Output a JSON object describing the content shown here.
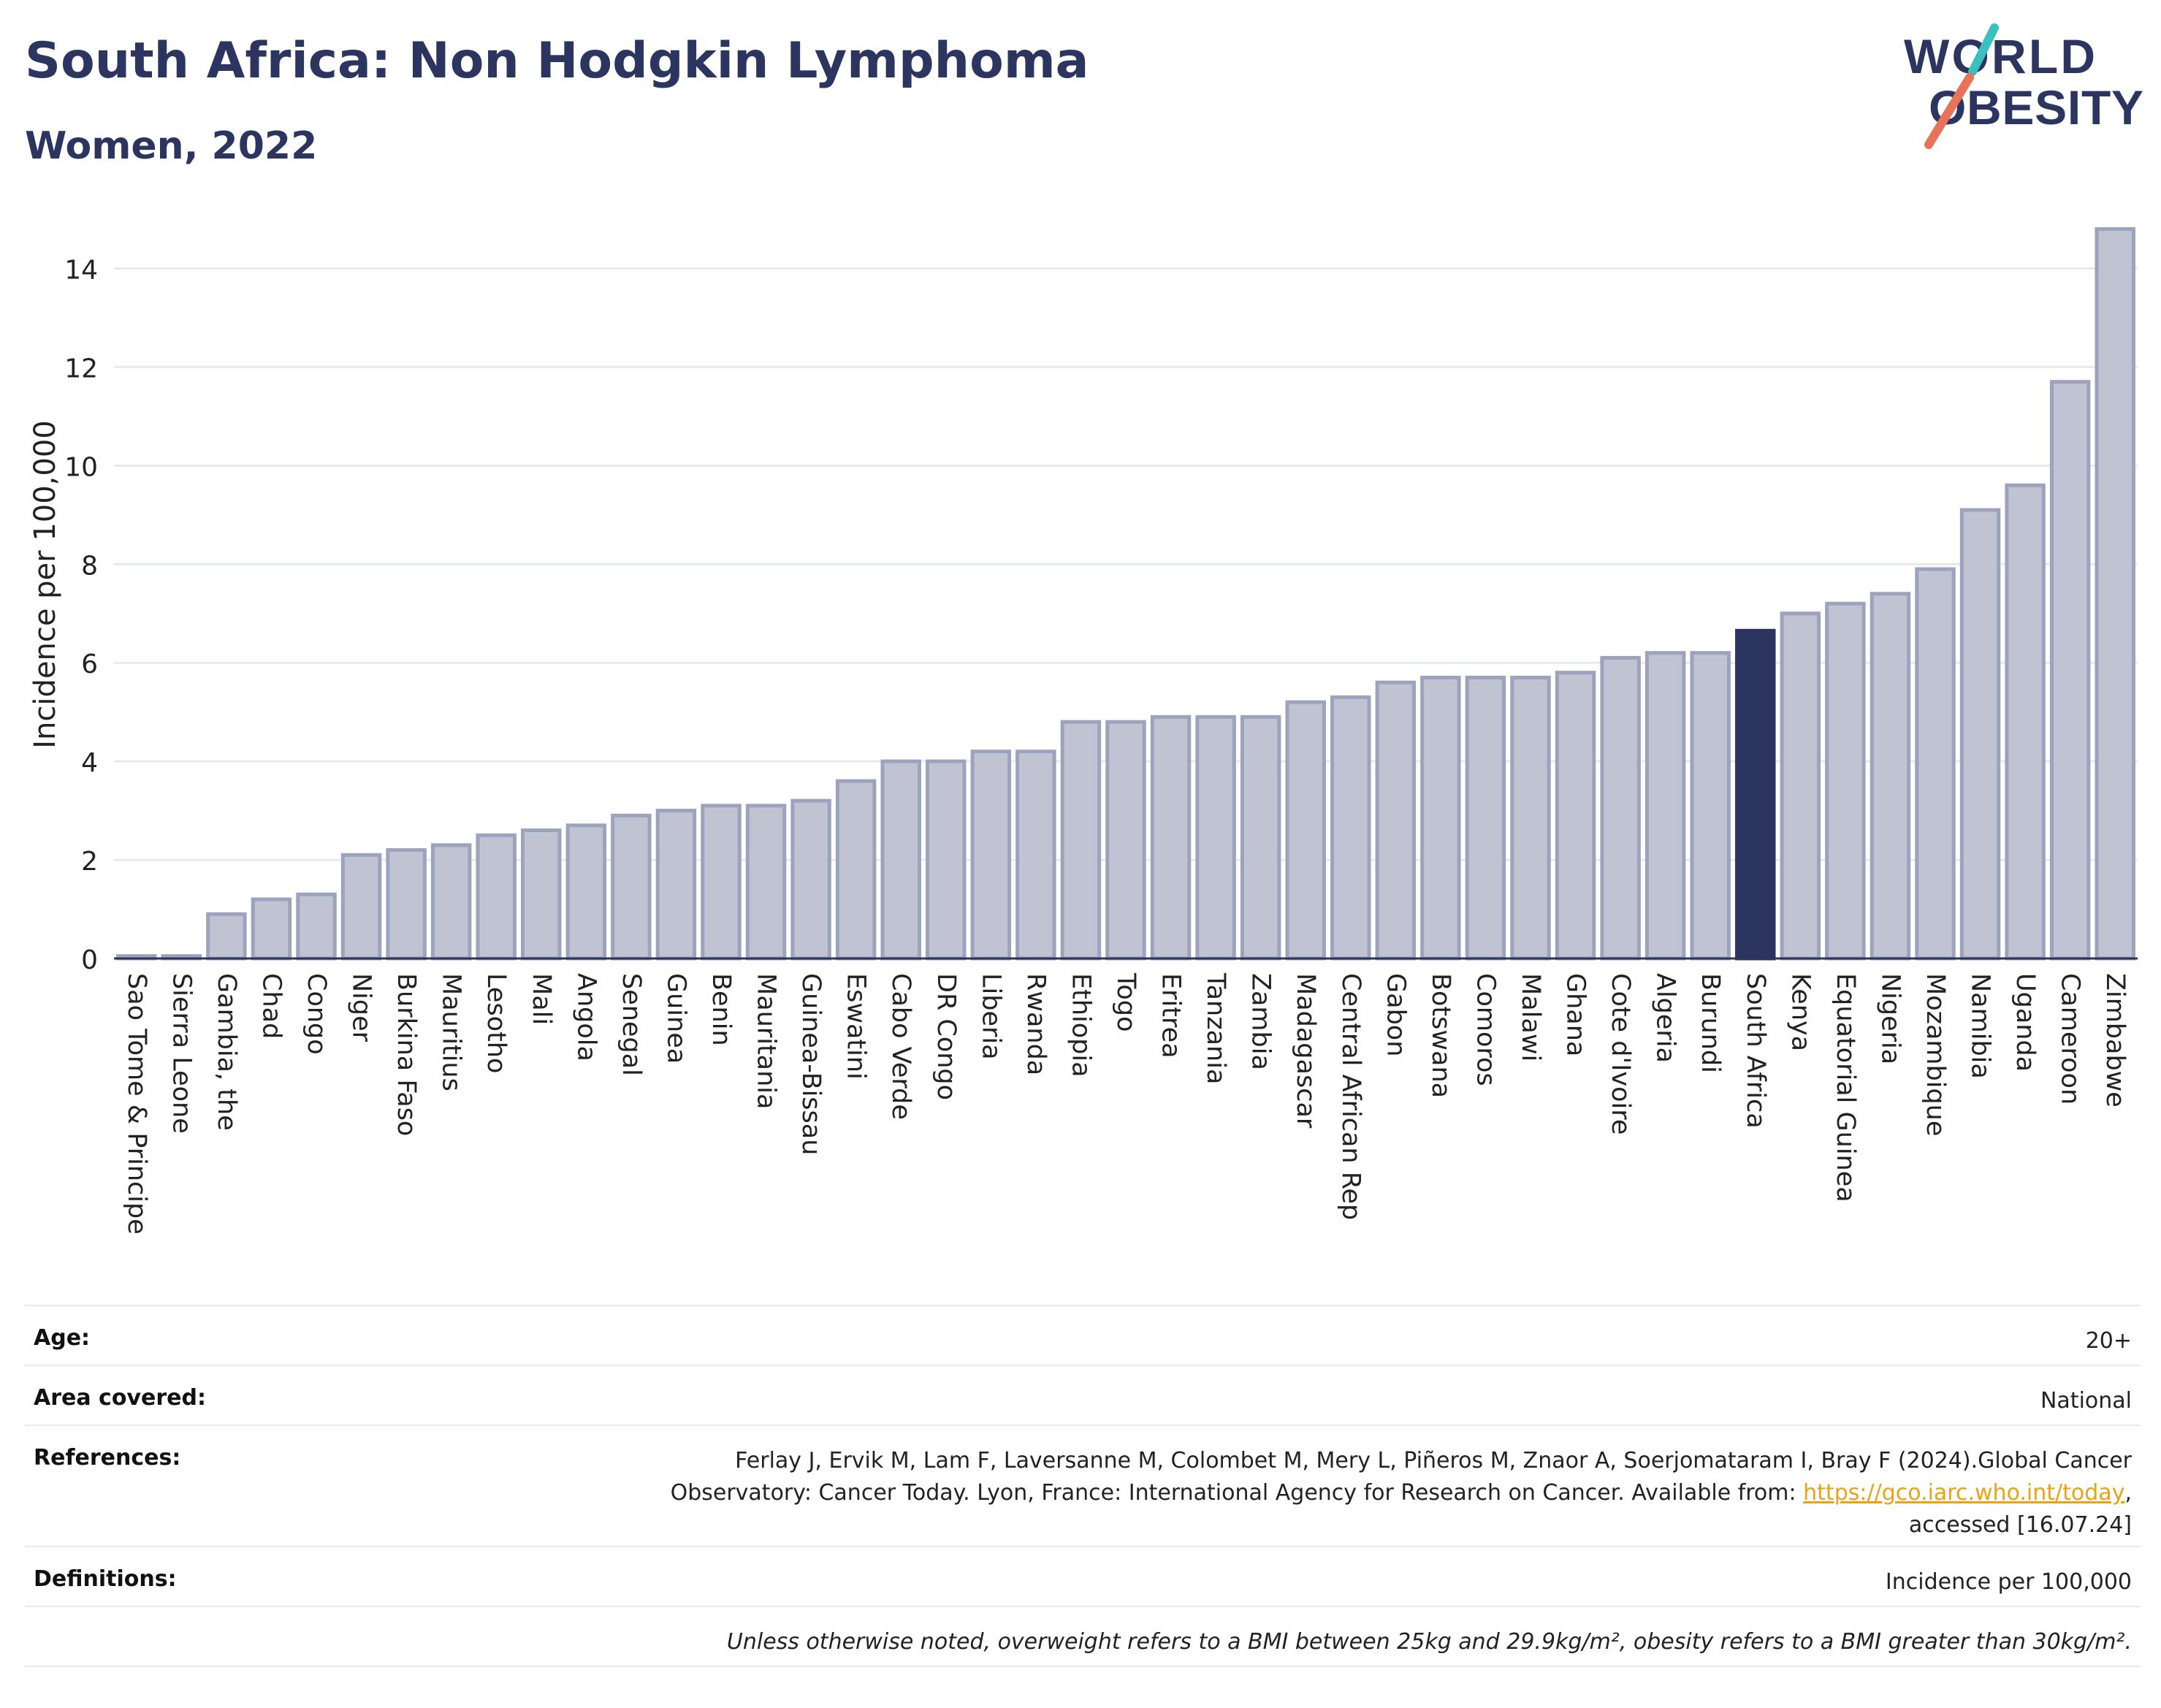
{
  "header": {
    "title": "South Africa: Non Hodgkin Lymphoma",
    "subtitle": "Women, 2022",
    "logo_line1": "WORLD",
    "logo_line2": "OBESITY"
  },
  "colors": {
    "bar": "#bfc3d2",
    "bar_border": "#9da3bd",
    "highlight": "#2b3560",
    "title": "#2b3560",
    "logo_teal": "#3bbfbf",
    "logo_coral": "#e8735a"
  },
  "chart_data": {
    "type": "bar",
    "title": "South Africa: Non Hodgkin Lymphoma",
    "subtitle": "Women, 2022",
    "xlabel": "",
    "ylabel": "Incidence per 100,000",
    "ylim": [
      0,
      15
    ],
    "yticks": [
      0,
      2,
      4,
      6,
      8,
      10,
      12,
      14
    ],
    "grid": true,
    "highlight": "South Africa",
    "categories": [
      "Sao Tome & Principe",
      "Sierra Leone",
      "Gambia, the",
      "Chad",
      "Congo",
      "Niger",
      "Burkina Faso",
      "Mauritius",
      "Lesotho",
      "Mali",
      "Angola",
      "Senegal",
      "Guinea",
      "Benin",
      "Mauritania",
      "Guinea-Bissau",
      "Eswatini",
      "Cabo Verde",
      "DR Congo",
      "Liberia",
      "Rwanda",
      "Ethiopia",
      "Togo",
      "Eritrea",
      "Tanzania",
      "Zambia",
      "Madagascar",
      "Central African Rep",
      "Gabon",
      "Botswana",
      "Comoros",
      "Malawi",
      "Ghana",
      "Cote d'Ivoire",
      "Algeria",
      "Burundi",
      "South Africa",
      "Kenya",
      "Equatorial Guinea",
      "Nigeria",
      "Mozambique",
      "Namibia",
      "Uganda",
      "Cameroon",
      "Zimbabwe"
    ],
    "values": [
      0.05,
      0.05,
      0.9,
      1.2,
      1.3,
      2.1,
      2.2,
      2.3,
      2.5,
      2.6,
      2.7,
      2.9,
      3.0,
      3.1,
      3.1,
      3.2,
      3.6,
      4.0,
      4.0,
      4.2,
      4.2,
      4.8,
      4.8,
      4.9,
      4.9,
      4.9,
      5.2,
      5.3,
      5.6,
      5.7,
      5.7,
      5.7,
      5.8,
      6.1,
      6.2,
      6.2,
      6.65,
      7.0,
      7.2,
      7.4,
      7.9,
      9.1,
      9.6,
      11.7,
      14.8
    ]
  },
  "meta": {
    "age_label": "Age:",
    "age_value": "20+",
    "area_label": "Area covered:",
    "area_value": "National",
    "references_label": "References:",
    "references_text_1": "Ferlay J, Ervik M, Lam F, Laversanne M, Colombet M, Mery L, Piñeros M, Znaor A, Soerjomataram I, Bray F (2024).Global Cancer",
    "references_text_2": "Observatory: Cancer Today. Lyon, France: International Agency for Research on Cancer. Available from: ",
    "references_link": "https://gco.iarc.who.int/today",
    "references_text_3": ",",
    "references_text_4": "accessed [16.07.24]",
    "definitions_label": "Definitions:",
    "definitions_value": "Incidence per 100,000",
    "note": "Unless otherwise noted, overweight refers to a BMI between 25kg and 29.9kg/m², obesity refers to a BMI greater than 30kg/m²."
  }
}
